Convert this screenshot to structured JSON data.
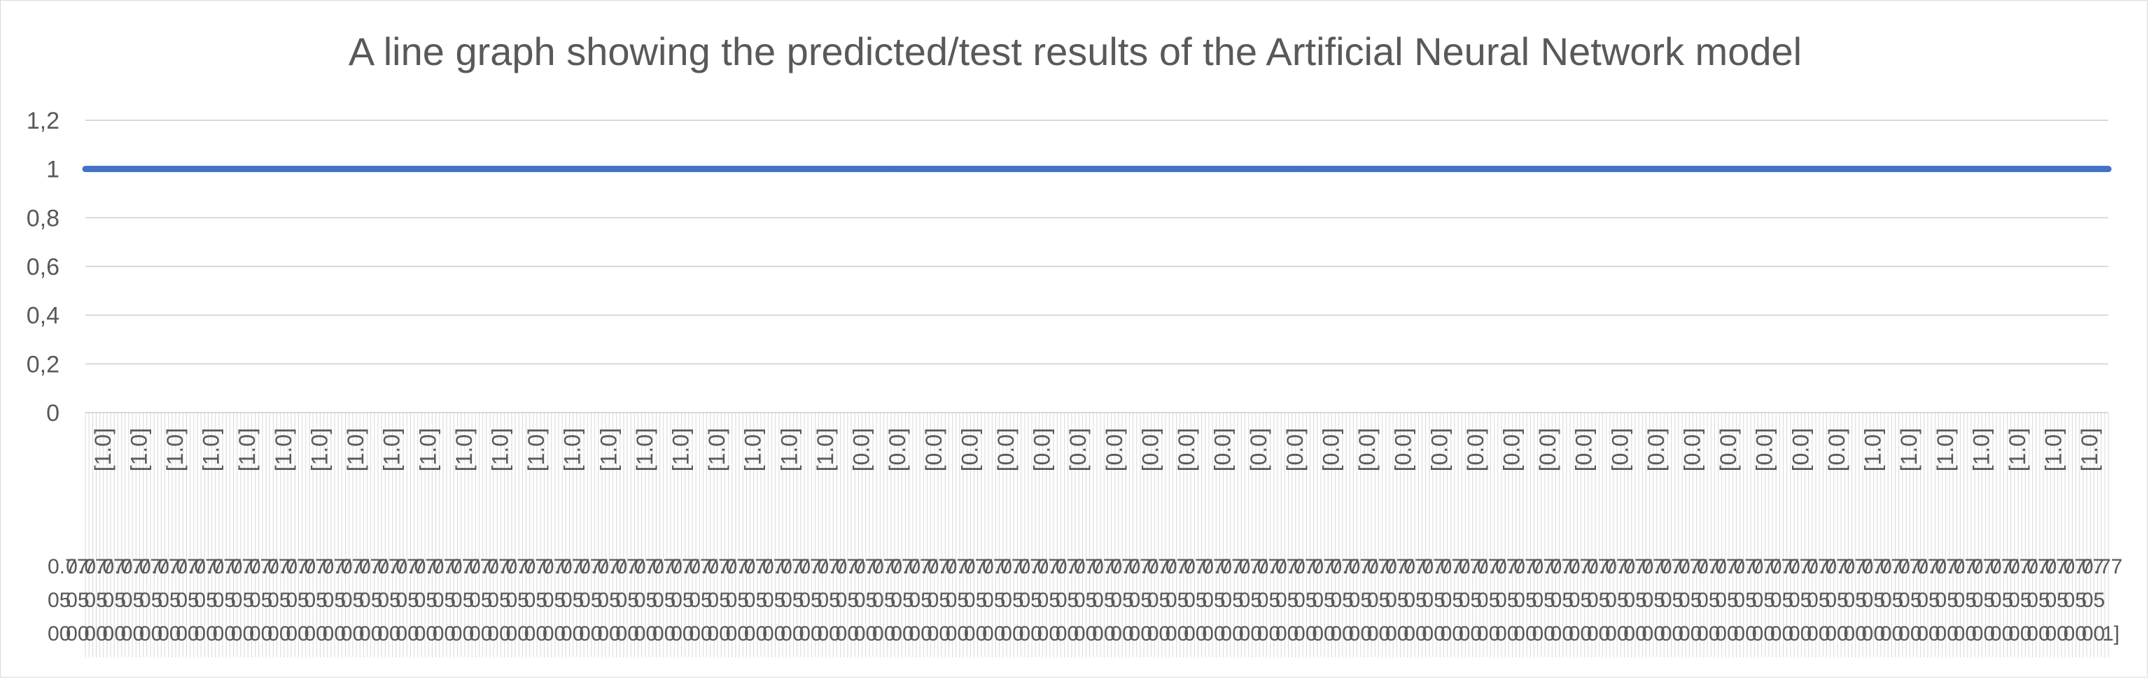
{
  "chart_data": {
    "type": "line",
    "title": "A line graph showing the predicted/test results of the Artificial Neural Network model",
    "xlabel": "",
    "ylabel": "",
    "ylim": [
      0,
      1.2
    ],
    "y_ticks": [
      "0",
      "0,2",
      "0,4",
      "0,6",
      "0,8",
      "1",
      "1,2"
    ],
    "grid": true,
    "legend": "none",
    "category_labels": [
      "[1.0]",
      "[1.0]",
      "[1.0]",
      "[1.0]",
      "[1.0]",
      "[1.0]",
      "[1.0]",
      "[1.0]",
      "[1.0]",
      "[1.0]",
      "[1.0]",
      "[1.0]",
      "[1.0]",
      "[1.0]",
      "[1.0]",
      "[1.0]",
      "[1.0]",
      "[1.0]",
      "[1.0]",
      "[1.0]",
      "[1.0]",
      "[0.0]",
      "[0.0]",
      "[0.0]",
      "[0.0]",
      "[0.0]",
      "[0.0]",
      "[0.0]",
      "[0.0]",
      "[0.0]",
      "[0.0]",
      "[0.0]",
      "[0.0]",
      "[0.0]",
      "[0.0]",
      "[0.0]",
      "[0.0]",
      "[0.0]",
      "[0.0]",
      "[0.0]",
      "[0.0]",
      "[0.0]",
      "[0.0]",
      "[0.0]",
      "[0.0]",
      "[0.0]",
      "[0.0]",
      "[0.0]",
      "[0.0]",
      "[1.0]",
      "[1.0]",
      "[1.0]",
      "[1.0]",
      "[1.0]",
      "[1.0]",
      "[1.0]"
    ],
    "secondary_labels": [
      "0.77",
      "05",
      "00"
    ],
    "last_secondary_label": "1]",
    "series": [
      {
        "values": [
          1,
          1,
          1,
          1,
          1,
          1,
          1,
          1,
          1,
          1,
          1,
          1,
          1,
          1,
          1,
          1,
          1,
          1,
          1,
          1,
          1,
          1,
          1,
          1,
          1,
          1,
          1,
          1,
          1,
          1,
          1,
          1,
          1,
          1,
          1,
          1,
          1,
          1,
          1,
          1,
          1,
          1,
          1,
          1,
          1,
          1,
          1,
          1,
          1,
          1,
          1,
          1,
          1,
          1,
          1,
          1
        ]
      }
    ],
    "colors": {
      "series": "#4472c4",
      "grid": "#d9d9d9",
      "text": "#595959"
    }
  }
}
